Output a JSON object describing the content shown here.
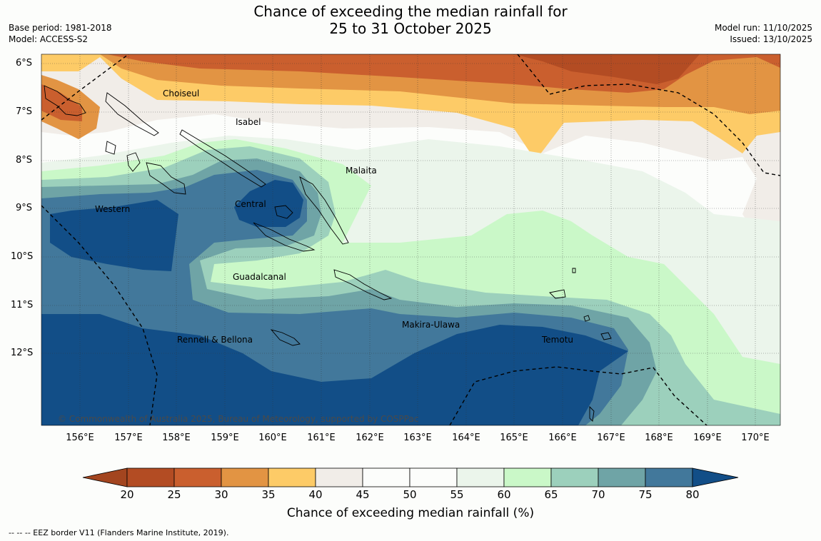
{
  "title": {
    "line1": "Chance of exceeding the median rainfall for",
    "line2": "25 to 31 October 2025"
  },
  "meta_left": {
    "base_period": "Base period: 1981-2018",
    "model": "Model: ACCESS-S2"
  },
  "meta_right": {
    "model_run": "Model run: 11/10/2025",
    "issued": "Issued: 13/10/2025"
  },
  "lat_labels": [
    "6°S",
    "7°S",
    "8°S",
    "9°S",
    "10°S",
    "11°S",
    "12°S"
  ],
  "lon_labels": [
    "156°E",
    "157°E",
    "158°E",
    "159°E",
    "160°E",
    "161°E",
    "162°E",
    "163°E",
    "164°E",
    "165°E",
    "166°E",
    "167°E",
    "168°E",
    "169°E",
    "170°E"
  ],
  "regions": {
    "choiseul": "Choiseul",
    "isabel": "Isabel",
    "malaita": "Malaita",
    "western": "Western",
    "central": "Central",
    "guadalcanal": "Guadalcanal",
    "makira": "Makira-Ulawa",
    "rennell": "Rennell & Bellona",
    "temotu": "Temotu"
  },
  "copyright": "© Commonwealth of Australia 2025, Bureau of Meteorology, supported by COSPPac",
  "colorbar": {
    "ticks": [
      "20",
      "25",
      "30",
      "35",
      "40",
      "45",
      "50",
      "55",
      "60",
      "65",
      "70",
      "75",
      "80"
    ],
    "colors": [
      "#a3451f",
      "#b34c23",
      "#ca5f2e",
      "#e29443",
      "#fdcb67",
      "#f1ede8",
      "#fcfdfb",
      "#fcfdfb",
      "#ebf5eb",
      "#caf8c8",
      "#9cd0bc",
      "#6fa4a6",
      "#42789b",
      "#124e87"
    ],
    "label": "Chance of exceeding median rainfall (%)"
  },
  "eez_note": "--  --  -- EEZ border V11 (Flanders Marine Institute, 2019)."
}
